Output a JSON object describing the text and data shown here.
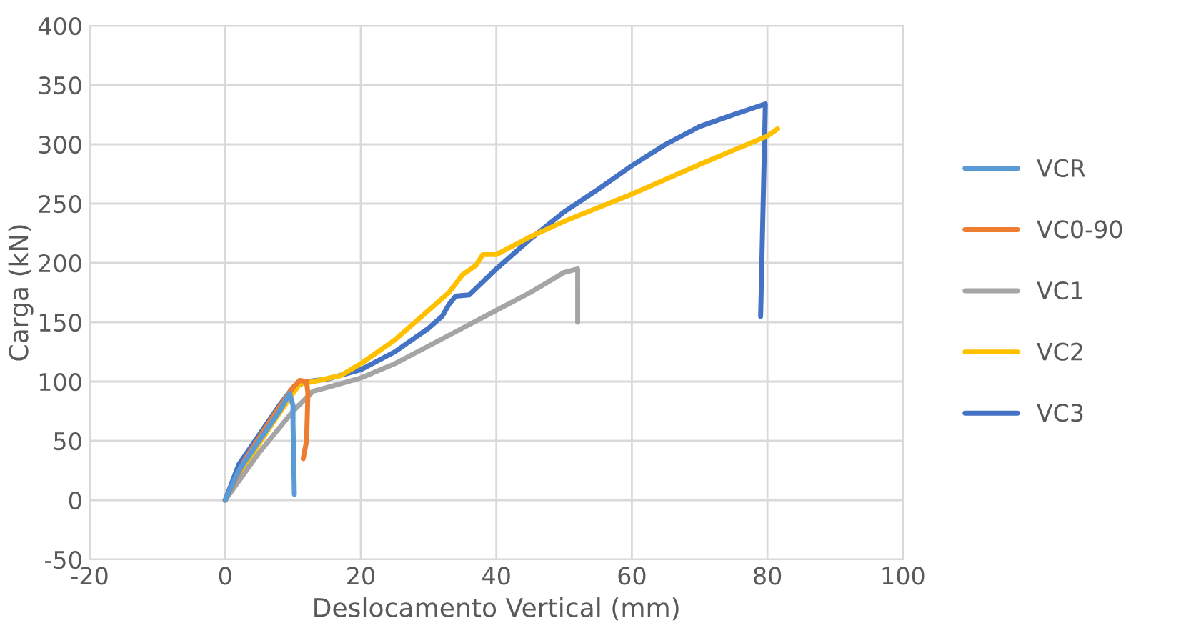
{
  "chart_data": {
    "type": "line",
    "xlabel": "Deslocamento Vertical (mm)",
    "ylabel": "Carga (kN)",
    "xlim": [
      -20,
      100
    ],
    "xticks": [
      -20,
      0,
      20,
      40,
      60,
      80,
      100
    ],
    "ylim": [
      -50,
      400
    ],
    "yticks": [
      -50,
      0,
      50,
      100,
      150,
      200,
      250,
      300,
      350,
      400
    ],
    "grid": true,
    "legend": "right",
    "line_style": "solid",
    "marker": "none",
    "series": [
      {
        "name": "VCR",
        "color": "#5b9bd5",
        "x": [
          0,
          2,
          5,
          8,
          9.5,
          10,
          10,
          10.2
        ],
        "values": [
          0,
          25,
          50,
          75,
          90,
          80,
          65,
          5
        ]
      },
      {
        "name": "VC0-90",
        "color": "#ed7d31",
        "x": [
          0,
          3,
          7,
          10,
          11,
          12,
          12.2,
          12,
          11.5
        ],
        "values": [
          0,
          35,
          70,
          95,
          101,
          100,
          90,
          50,
          35
        ]
      },
      {
        "name": "VC1",
        "color": "#a5a5a5",
        "x": [
          0,
          5,
          10,
          13,
          15,
          20,
          25,
          30,
          35,
          40,
          45,
          50,
          52,
          52,
          52
        ],
        "values": [
          0,
          40,
          75,
          92,
          95,
          103,
          115,
          130,
          145,
          160,
          175,
          192,
          195,
          175,
          150
        ]
      },
      {
        "name": "VC2",
        "color": "#ffc000",
        "x": [
          0,
          3,
          7,
          10,
          11,
          13,
          17,
          20,
          25,
          30,
          33,
          35,
          37,
          38,
          40,
          45,
          50,
          60,
          70,
          80,
          81.5
        ],
        "values": [
          0,
          30,
          65,
          90,
          98,
          100,
          105,
          115,
          135,
          160,
          175,
          190,
          198,
          207,
          207,
          222,
          235,
          258,
          283,
          307,
          313
        ]
      },
      {
        "name": "VC3",
        "color": "#4472c4",
        "x": [
          0,
          2,
          5,
          8,
          10,
          12,
          15,
          20,
          25,
          30,
          32,
          33,
          34,
          36,
          40,
          45,
          50,
          55,
          60,
          65,
          70,
          75,
          79.7,
          79
        ],
        "values": [
          0,
          30,
          55,
          80,
          95,
          100,
          102,
          110,
          125,
          145,
          155,
          165,
          172,
          173,
          195,
          220,
          243,
          262,
          282,
          300,
          315,
          325,
          334,
          155
        ]
      }
    ]
  }
}
